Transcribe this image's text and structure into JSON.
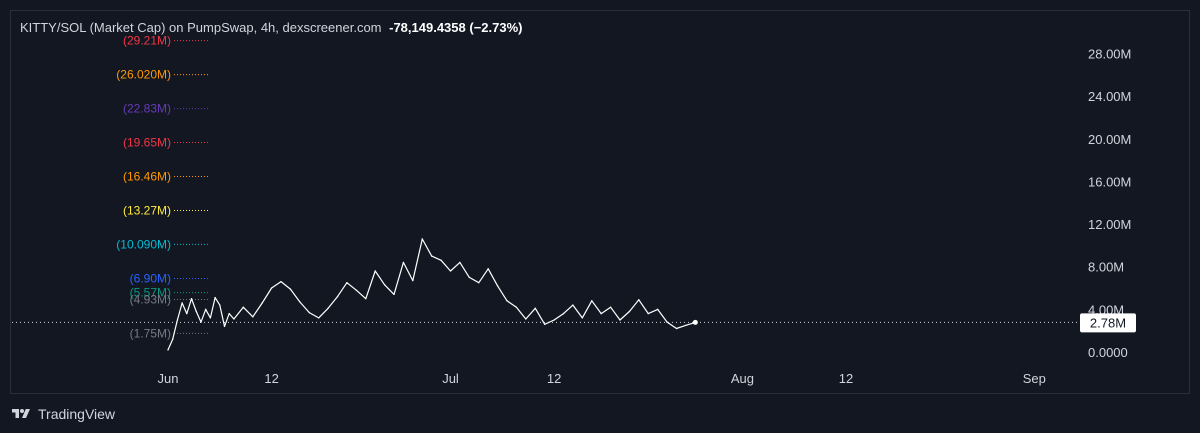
{
  "header": {
    "title": "KITTY/SOL (Market Cap) on PumpSwap, 4h, dexscreener.com",
    "change": "-78,149.4358 (−2.73%)"
  },
  "footer": {
    "brand": "TradingView"
  },
  "colors": {
    "background": "#131722",
    "line": "#ffffff",
    "axis_text": "#d1d4dc"
  },
  "chart_data": {
    "type": "line",
    "y_axis": {
      "ticks": [
        "28.00M",
        "24.00M",
        "20.00M",
        "16.00M",
        "12.00M",
        "8.00M",
        "4.00M",
        "0.0000"
      ],
      "ylim": [
        0,
        30000000
      ]
    },
    "x_axis": {
      "ticks": [
        "Jun",
        "12",
        "Jul",
        "12",
        "Aug",
        "12",
        "Sep"
      ]
    },
    "current_price": {
      "label": "2.78M",
      "value": 2780000
    },
    "levels": [
      {
        "label": "(29.21M)",
        "value": 29210000,
        "color": "#f23645"
      },
      {
        "label": "(26.020M)",
        "value": 26020000,
        "color": "#ff9800"
      },
      {
        "label": "(22.83M)",
        "value": 22830000,
        "color": "#673ab7"
      },
      {
        "label": "(19.65M)",
        "value": 19650000,
        "color": "#f23645"
      },
      {
        "label": "(16.46M)",
        "value": 16460000,
        "color": "#ff9800"
      },
      {
        "label": "(13.27M)",
        "value": 13270000,
        "color": "#ffeb3b"
      },
      {
        "label": "(10.090M)",
        "value": 10090000,
        "color": "#00bcd4"
      },
      {
        "label": "(6.90M)",
        "value": 6900000,
        "color": "#2962ff"
      },
      {
        "label": "(5.57M)",
        "value": 5570000,
        "color": "#089981"
      },
      {
        "label": "(4.93M)",
        "value": 4930000,
        "color": "#787b86"
      },
      {
        "label": "(1.75M)",
        "value": 1750000,
        "color": "#787b86"
      }
    ],
    "series": [
      {
        "points": [
          [
            "2024-06-01",
            0.2
          ],
          [
            "2024-06-01",
            1.2
          ],
          [
            "2024-06-02",
            3.0
          ],
          [
            "2024-06-02",
            4.6
          ],
          [
            "2024-06-03",
            3.6
          ],
          [
            "2024-06-03",
            5.0
          ],
          [
            "2024-06-04",
            3.8
          ],
          [
            "2024-06-04",
            2.8
          ],
          [
            "2024-06-05",
            4.0
          ],
          [
            "2024-06-05",
            3.2
          ],
          [
            "2024-06-06",
            5.1
          ],
          [
            "2024-06-06",
            4.4
          ],
          [
            "2024-06-07",
            2.4
          ],
          [
            "2024-06-07",
            3.6
          ],
          [
            "2024-06-08",
            3.1
          ],
          [
            "2024-06-09",
            4.2
          ],
          [
            "2024-06-10",
            3.3
          ],
          [
            "2024-06-11",
            4.6
          ],
          [
            "2024-06-12",
            6.0
          ],
          [
            "2024-06-13",
            6.6
          ],
          [
            "2024-06-14",
            5.9
          ],
          [
            "2024-06-15",
            4.7
          ],
          [
            "2024-06-16",
            3.7
          ],
          [
            "2024-06-17",
            3.2
          ],
          [
            "2024-06-18",
            4.1
          ],
          [
            "2024-06-19",
            5.2
          ],
          [
            "2024-06-20",
            6.5
          ],
          [
            "2024-06-21",
            5.8
          ],
          [
            "2024-06-22",
            5.0
          ],
          [
            "2024-06-23",
            7.6
          ],
          [
            "2024-06-24",
            6.3
          ],
          [
            "2024-06-25",
            5.4
          ],
          [
            "2024-06-26",
            8.4
          ],
          [
            "2024-06-27",
            6.7
          ],
          [
            "2024-06-28",
            10.6
          ],
          [
            "2024-06-29",
            9.0
          ],
          [
            "2024-06-30",
            8.6
          ],
          [
            "2024-07-01",
            7.6
          ],
          [
            "2024-07-02",
            8.4
          ],
          [
            "2024-07-03",
            7.0
          ],
          [
            "2024-07-04",
            6.5
          ],
          [
            "2024-07-05",
            7.8
          ],
          [
            "2024-07-06",
            6.2
          ],
          [
            "2024-07-07",
            4.8
          ],
          [
            "2024-07-08",
            4.2
          ],
          [
            "2024-07-09",
            3.1
          ],
          [
            "2024-07-10",
            4.1
          ],
          [
            "2024-07-11",
            2.6
          ],
          [
            "2024-07-12",
            3.0
          ],
          [
            "2024-07-13",
            3.6
          ],
          [
            "2024-07-14",
            4.4
          ],
          [
            "2024-07-15",
            3.2
          ],
          [
            "2024-07-16",
            4.8
          ],
          [
            "2024-07-17",
            3.6
          ],
          [
            "2024-07-18",
            4.2
          ],
          [
            "2024-07-19",
            3.0
          ],
          [
            "2024-07-20",
            3.8
          ],
          [
            "2024-07-21",
            4.9
          ],
          [
            "2024-07-22",
            3.6
          ],
          [
            "2024-07-23",
            4.0
          ],
          [
            "2024-07-24",
            2.8
          ],
          [
            "2024-07-25",
            2.2
          ],
          [
            "2024-07-26",
            2.5
          ],
          [
            "2024-07-27",
            2.78
          ]
        ]
      }
    ],
    "grid": false,
    "legend": "none"
  }
}
